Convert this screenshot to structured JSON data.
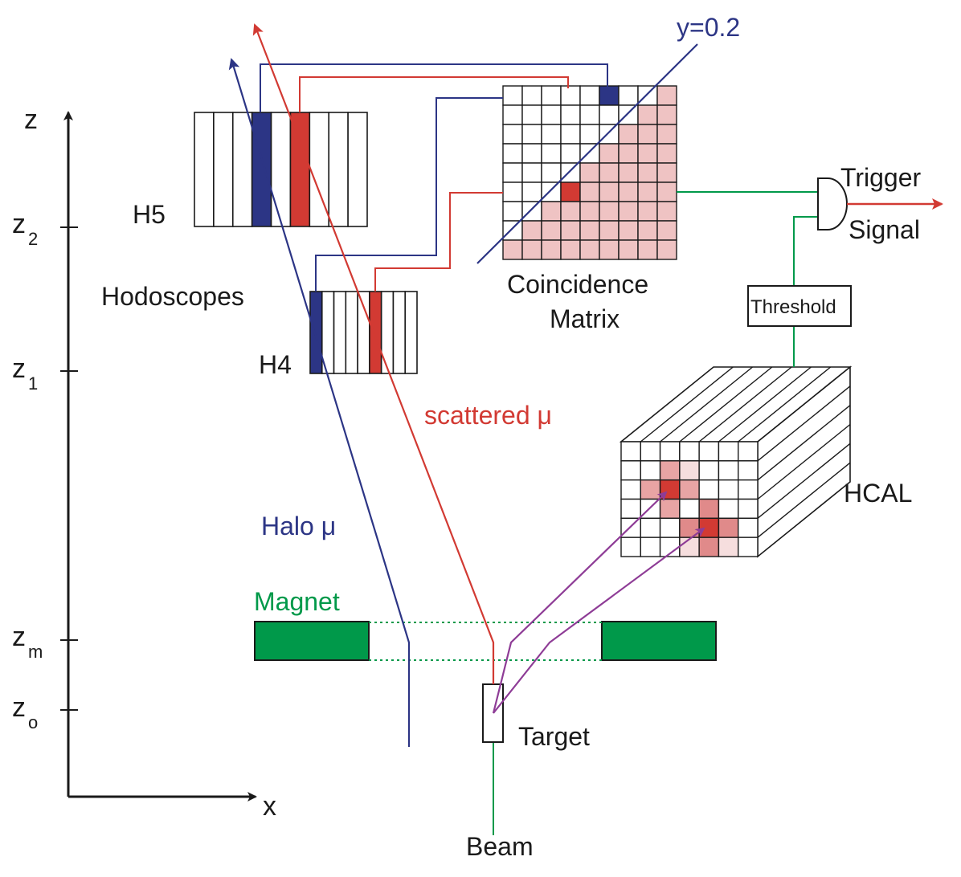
{
  "axes": {
    "z_label": "z",
    "x_label": "x",
    "ticks": [
      {
        "base": "z",
        "sub": "2"
      },
      {
        "base": "z",
        "sub": "1"
      },
      {
        "base": "z",
        "sub": "m"
      },
      {
        "base": "z",
        "sub": "o"
      }
    ]
  },
  "labels": {
    "h5": "H5",
    "h4": "H4",
    "hodoscopes": "Hodoscopes",
    "coincidence_line1": "Coincidence",
    "coincidence_line2": "Matrix",
    "y_cut": "y=0.2",
    "trigger_line1": "Trigger",
    "trigger_line2": "Signal",
    "threshold": "Threshold",
    "hcal": "HCAL",
    "scattered": "scattered μ",
    "halo": "Halo μ",
    "magnet": "Magnet",
    "target": "Target",
    "beam": "Beam"
  },
  "colors": {
    "red": "#d23a33",
    "blue": "#2c3585",
    "green": "#00994a",
    "pink": "#efc3c3",
    "purple": "#8e3c96",
    "black": "#1a1a1a"
  }
}
